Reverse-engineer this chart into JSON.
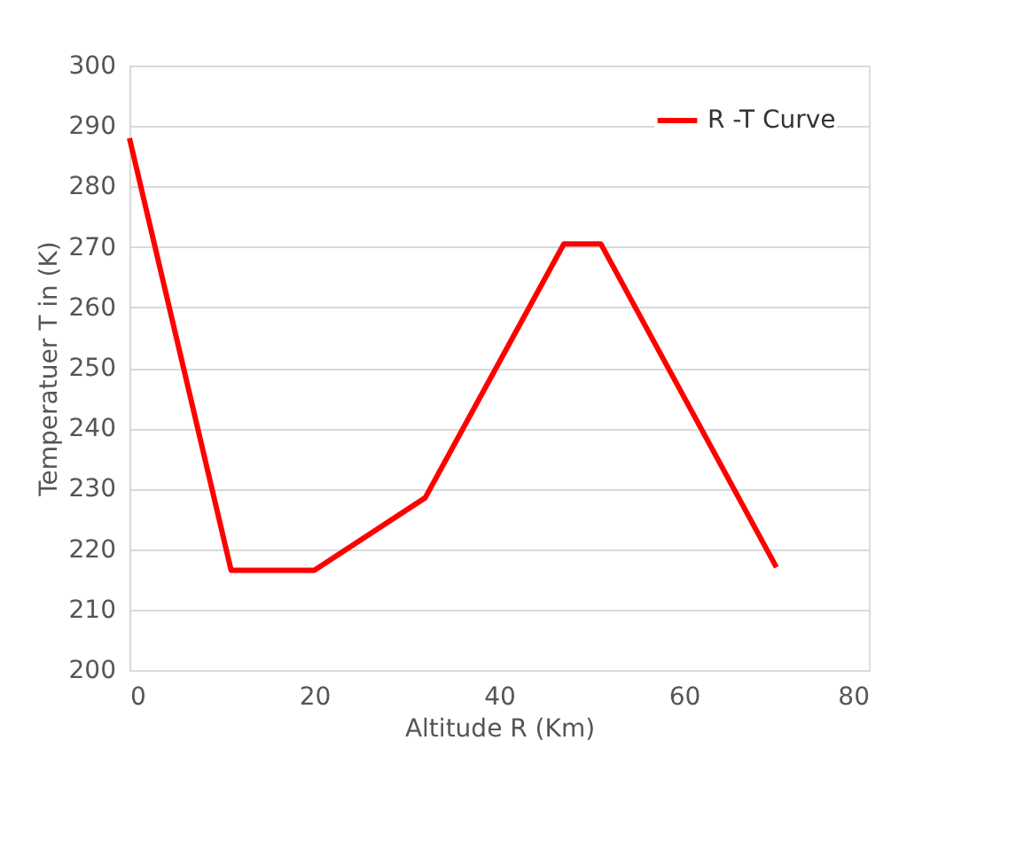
{
  "chart_data": {
    "type": "line",
    "xlabel": "Altitude R (Km)",
    "ylabel": "Temperatuer  T in (K)",
    "x": [
      0,
      11,
      20,
      32,
      47,
      51,
      70
    ],
    "series": [
      {
        "name": "R -T Curve",
        "color": "#ff0000",
        "values": [
          288,
          216.5,
          216.5,
          228.5,
          270.5,
          270.5,
          217
        ]
      }
    ],
    "xlim": [
      0,
      80
    ],
    "xticks": [
      0,
      20,
      40,
      60,
      80
    ],
    "ylim": [
      200,
      300
    ],
    "yticks": [
      200,
      210,
      220,
      230,
      240,
      250,
      260,
      270,
      280,
      290,
      300
    ],
    "grid": "y",
    "legend": "top right",
    "marker": "none",
    "line_style": "solid"
  }
}
